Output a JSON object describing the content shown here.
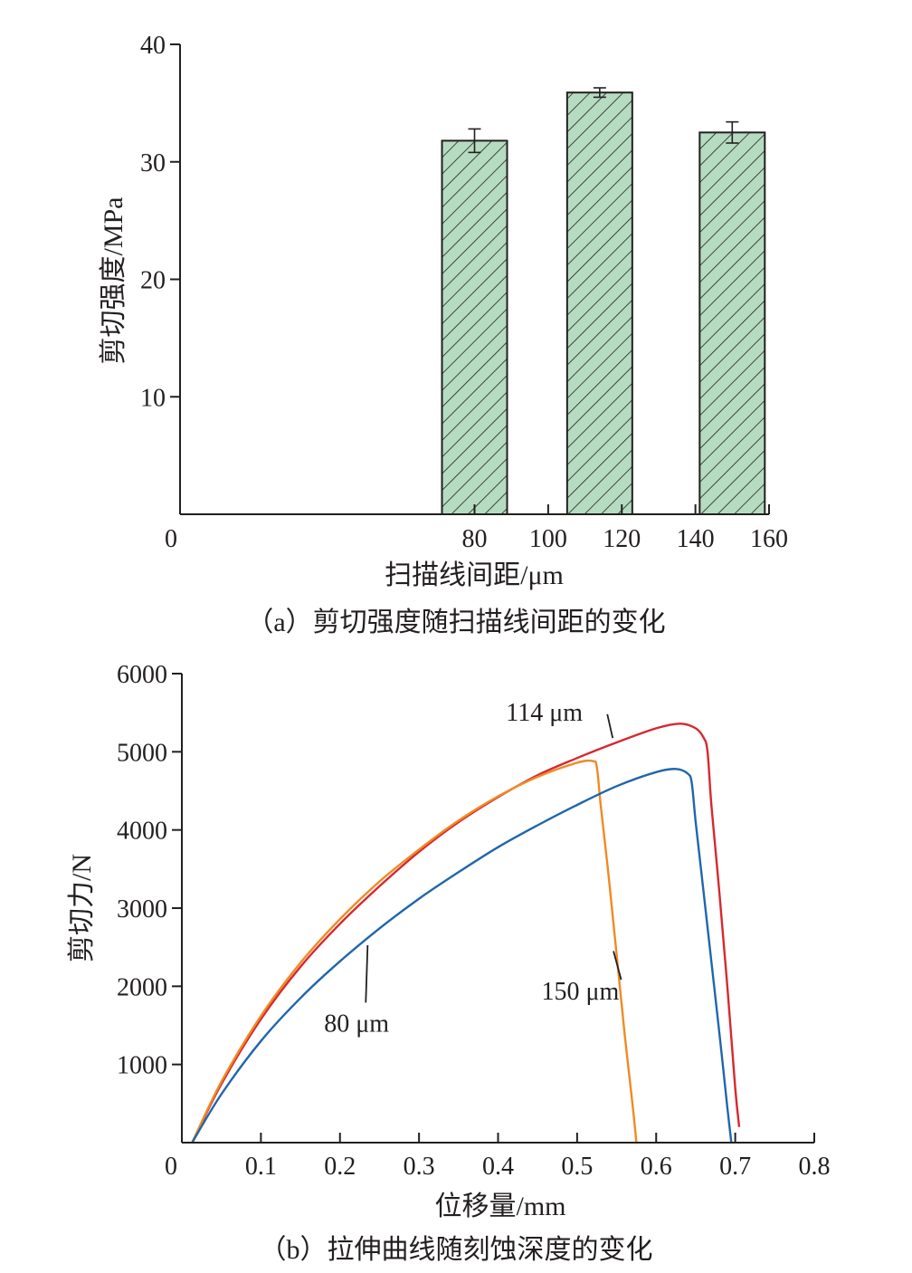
{
  "chart_data": [
    {
      "type": "bar",
      "x": [
        80,
        114,
        150
      ],
      "values": [
        31.8,
        35.9,
        32.5
      ],
      "error": [
        1.0,
        0.4,
        0.9
      ],
      "xlabel": "扫描线间距/μm",
      "ylabel": "剪切强度/MPa",
      "xlim": [
        0,
        160
      ],
      "ylim": [
        0,
        40
      ],
      "xticks": [
        "0",
        "80",
        "100",
        "120",
        "140",
        "160"
      ],
      "yticks": [
        "10",
        "20",
        "30",
        "40"
      ],
      "caption": "（a）剪切强度随扫描线间距的变化",
      "bar_color": "#b5dcc0",
      "hatch_color": "#231f20",
      "grid": false
    },
    {
      "type": "line",
      "xlabel": "位移量/mm",
      "ylabel": "剪切力/N",
      "xlim": [
        0,
        0.8
      ],
      "ylim": [
        0,
        6000
      ],
      "xticks": [
        "0",
        "0.1",
        "0.2",
        "0.3",
        "0.4",
        "0.5",
        "0.6",
        "0.7",
        "0.8"
      ],
      "yticks": [
        "1000",
        "2000",
        "3000",
        "4000",
        "5000",
        "6000"
      ],
      "caption": "（b）拉伸曲线随刻蚀深度的变化",
      "grid": false,
      "series": [
        {
          "name": "114 μm",
          "color": "#d7282f",
          "x": [
            0.013,
            0.05,
            0.1,
            0.15,
            0.2,
            0.25,
            0.3,
            0.35,
            0.4,
            0.45,
            0.5,
            0.55,
            0.6,
            0.63,
            0.65,
            0.66,
            0.665,
            0.67,
            0.68,
            0.69,
            0.7,
            0.705
          ],
          "y": [
            0,
            750,
            1580,
            2250,
            2800,
            3280,
            3720,
            4100,
            4420,
            4700,
            4920,
            5120,
            5300,
            5360,
            5300,
            5180,
            5000,
            4300,
            3200,
            2000,
            700,
            200
          ]
        },
        {
          "name": "150 μm",
          "color": "#f08a24",
          "x": [
            0.013,
            0.05,
            0.1,
            0.15,
            0.2,
            0.25,
            0.3,
            0.35,
            0.4,
            0.45,
            0.5,
            0.52,
            0.525,
            0.53,
            0.54,
            0.55,
            0.56,
            0.57,
            0.575
          ],
          "y": [
            0,
            780,
            1620,
            2300,
            2860,
            3340,
            3750,
            4120,
            4430,
            4680,
            4860,
            4880,
            4800,
            4300,
            3400,
            2400,
            1400,
            500,
            0
          ]
        },
        {
          "name": "80 μm",
          "color": "#2066ac",
          "x": [
            0.013,
            0.05,
            0.1,
            0.15,
            0.2,
            0.25,
            0.3,
            0.35,
            0.4,
            0.45,
            0.5,
            0.55,
            0.6,
            0.625,
            0.64,
            0.645,
            0.65,
            0.66,
            0.67,
            0.68,
            0.69,
            0.695
          ],
          "y": [
            0,
            620,
            1300,
            1850,
            2320,
            2740,
            3120,
            3460,
            3780,
            4060,
            4320,
            4560,
            4740,
            4780,
            4720,
            4600,
            4100,
            3200,
            2300,
            1400,
            450,
            0
          ]
        }
      ],
      "annotations": [
        {
          "text": "114 μm",
          "x": 0.41,
          "y": 5400,
          "tip_x": 0.545,
          "tip_y": 5175
        },
        {
          "text": "150 μm",
          "x": 0.455,
          "y": 1830,
          "tip_x": 0.546,
          "tip_y": 2450
        },
        {
          "text": "80 μm",
          "x": 0.18,
          "y": 1420,
          "tip_x": 0.235,
          "tip_y": 2525
        }
      ]
    }
  ]
}
